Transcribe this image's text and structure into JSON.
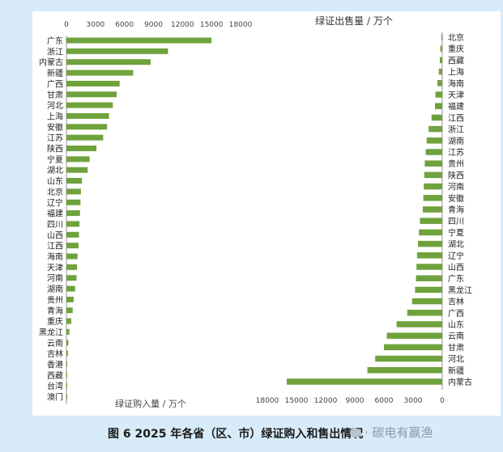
{
  "caption": {
    "figure": "图 6   2025 年各省（区、市）绿证购入和售出情况",
    "brand": "· 碳电有赢渔"
  },
  "chart_data": [
    {
      "type": "bar",
      "orientation": "horizontal",
      "title": "",
      "xlabel": "绿证购入量 / 万个",
      "axis_position": "top",
      "xlim": [
        0,
        18000
      ],
      "ticks": [
        0,
        3000,
        6000,
        9000,
        12000,
        15000,
        18000
      ],
      "grid": false,
      "bar_color": "#6fa23c",
      "categories": [
        "广东",
        "浙江",
        "内蒙古",
        "新疆",
        "广西",
        "甘肃",
        "河北",
        "上海",
        "安徽",
        "江苏",
        "陕西",
        "宁夏",
        "湖北",
        "山东",
        "北京",
        "辽宁",
        "福建",
        "四川",
        "山西",
        "江西",
        "海南",
        "天津",
        "河南",
        "湖南",
        "贵州",
        "青海",
        "重庆",
        "黑龙江",
        "云南",
        "吉林",
        "香港",
        "西藏",
        "台湾",
        "澳门"
      ],
      "values": [
        15000,
        10500,
        8700,
        6900,
        5500,
        5200,
        4800,
        4400,
        4200,
        3800,
        3100,
        2400,
        2200,
        1600,
        1500,
        1450,
        1400,
        1350,
        1300,
        1250,
        1150,
        1100,
        1050,
        900,
        750,
        650,
        500,
        300,
        200,
        150,
        60,
        40,
        20,
        10
      ]
    },
    {
      "type": "bar",
      "orientation": "horizontal",
      "title": "绿证出售量 / 万个",
      "xlabel": "",
      "axis_position": "bottom",
      "reversed": true,
      "xlim": [
        0,
        18000
      ],
      "ticks": [
        18000,
        15000,
        12000,
        9000,
        6000,
        3000,
        0
      ],
      "grid": false,
      "bar_color": "#6fa23c",
      "categories": [
        "北京",
        "重庆",
        "西藏",
        "上海",
        "海南",
        "天津",
        "福建",
        "江西",
        "浙江",
        "湖南",
        "江苏",
        "贵州",
        "陕西",
        "河南",
        "安徽",
        "青海",
        "四川",
        "宁夏",
        "湖北",
        "辽宁",
        "山西",
        "广东",
        "黑龙江",
        "吉林",
        "广西",
        "山东",
        "云南",
        "甘肃",
        "河北",
        "新疆",
        "内蒙古"
      ],
      "values": [
        100,
        200,
        250,
        350,
        500,
        700,
        750,
        1100,
        1400,
        1600,
        1700,
        1800,
        1850,
        1900,
        1950,
        2000,
        2300,
        2400,
        2500,
        2600,
        2650,
        2700,
        2800,
        3100,
        3600,
        4700,
        5700,
        6000,
        6900,
        7700,
        16000
      ]
    }
  ]
}
